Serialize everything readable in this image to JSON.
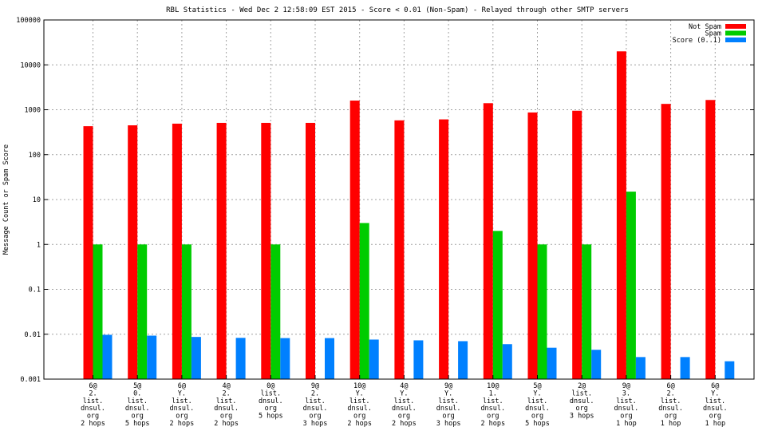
{
  "chart_data": {
    "type": "bar",
    "title": "RBL Statistics - Wed Dec  2 12:58:09 EST 2015 - Score < 0.01 (Non-Spam) - Relayed through other SMTP servers",
    "xlabel": "",
    "ylabel": "Message Count or Spam Score",
    "yscale": "log",
    "ylim": [
      0.001,
      100000
    ],
    "yticks": [
      "0.001",
      "0.01",
      "0.1",
      "1",
      "10",
      "100",
      "1000",
      "10000",
      "100000"
    ],
    "grid": true,
    "legend_position": "top-right",
    "categories": [
      [
        "6@",
        "2.",
        "list.",
        "dnsul.",
        "org",
        "2 hops"
      ],
      [
        "5@",
        "0.",
        "list.",
        "dnsul.",
        "org",
        "5 hops"
      ],
      [
        "6@",
        "Y.",
        "list.",
        "dnsul.",
        "org",
        "2 hops"
      ],
      [
        "4@",
        "2.",
        "list.",
        "dnsul.",
        "org",
        "2 hops"
      ],
      [
        "0@",
        "list.",
        "dnsul.",
        "org",
        "5 hops"
      ],
      [
        "9@",
        "2.",
        "list.",
        "dnsul.",
        "org",
        "3 hops"
      ],
      [
        "10@",
        "Y.",
        "list.",
        "dnsul.",
        "org",
        "2 hops"
      ],
      [
        "4@",
        "Y.",
        "list.",
        "dnsul.",
        "org",
        "2 hops"
      ],
      [
        "9@",
        "Y.",
        "list.",
        "dnsul.",
        "org",
        "3 hops"
      ],
      [
        "10@",
        "1.",
        "list.",
        "dnsul.",
        "org",
        "2 hops"
      ],
      [
        "5@",
        "Y.",
        "list.",
        "dnsul.",
        "org",
        "5 hops"
      ],
      [
        "2@",
        "list.",
        "dnsul.",
        "org",
        "3 hops"
      ],
      [
        "9@",
        "3.",
        "list.",
        "dnsul.",
        "org",
        "1 hop"
      ],
      [
        "6@",
        "2.",
        "list.",
        "dnsul.",
        "org",
        "1 hop"
      ],
      [
        "6@",
        "Y.",
        "list.",
        "dnsul.",
        "org",
        "1 hop"
      ]
    ],
    "series": [
      {
        "name": "Not Spam",
        "color": "#ff0000",
        "values": [
          430,
          450,
          490,
          510,
          510,
          510,
          1600,
          580,
          610,
          1400,
          870,
          950,
          20000,
          1350,
          1650
        ]
      },
      {
        "name": "Spam",
        "color": "#00cc00",
        "values": [
          1,
          1,
          1,
          null,
          1,
          null,
          3,
          null,
          null,
          2,
          1,
          1,
          15,
          null,
          null
        ]
      },
      {
        "name": "Score (0..1)",
        "color": "#0080ff",
        "values": [
          0.0097,
          0.0093,
          0.0087,
          0.0083,
          0.0082,
          0.0082,
          0.0076,
          0.0073,
          0.007,
          0.006,
          0.005,
          0.0045,
          0.0031,
          0.0031,
          0.0025
        ]
      }
    ]
  }
}
